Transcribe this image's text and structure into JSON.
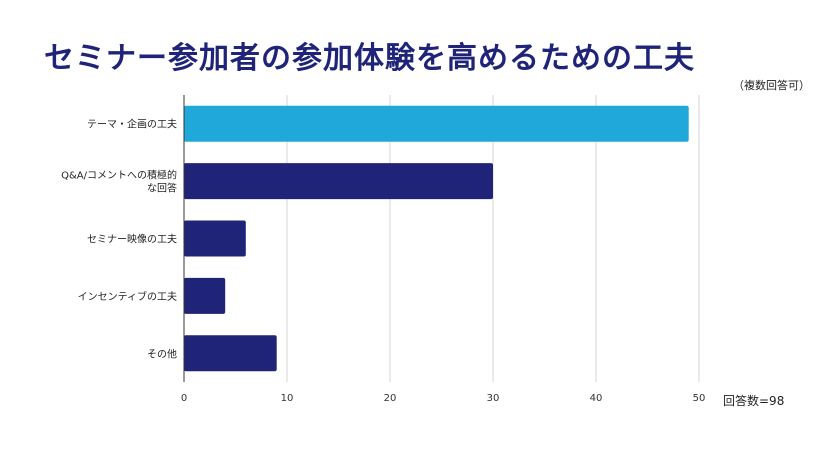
{
  "chart_data": {
    "type": "bar",
    "orientation": "horizontal",
    "title": "セミナー参加者の参加体験を高めるための工夫",
    "note": "（複数回答可）",
    "total_label": "回答数=98",
    "categories": [
      [
        "テーマ・企画の工夫"
      ],
      [
        "Q&A/コメントへの積極的",
        "な回答"
      ],
      [
        "セミナー映像の工夫"
      ],
      [
        "インセンティブの工夫"
      ],
      [
        "その他"
      ]
    ],
    "values": [
      49,
      30,
      6,
      4,
      9
    ],
    "colors": [
      "#1fa8d9",
      "#1f2478",
      "#1f2478",
      "#1f2478",
      "#1f2478"
    ],
    "xlim": [
      0,
      50
    ],
    "xticks": [
      0,
      10,
      20,
      30,
      40,
      50
    ],
    "grid": true
  }
}
